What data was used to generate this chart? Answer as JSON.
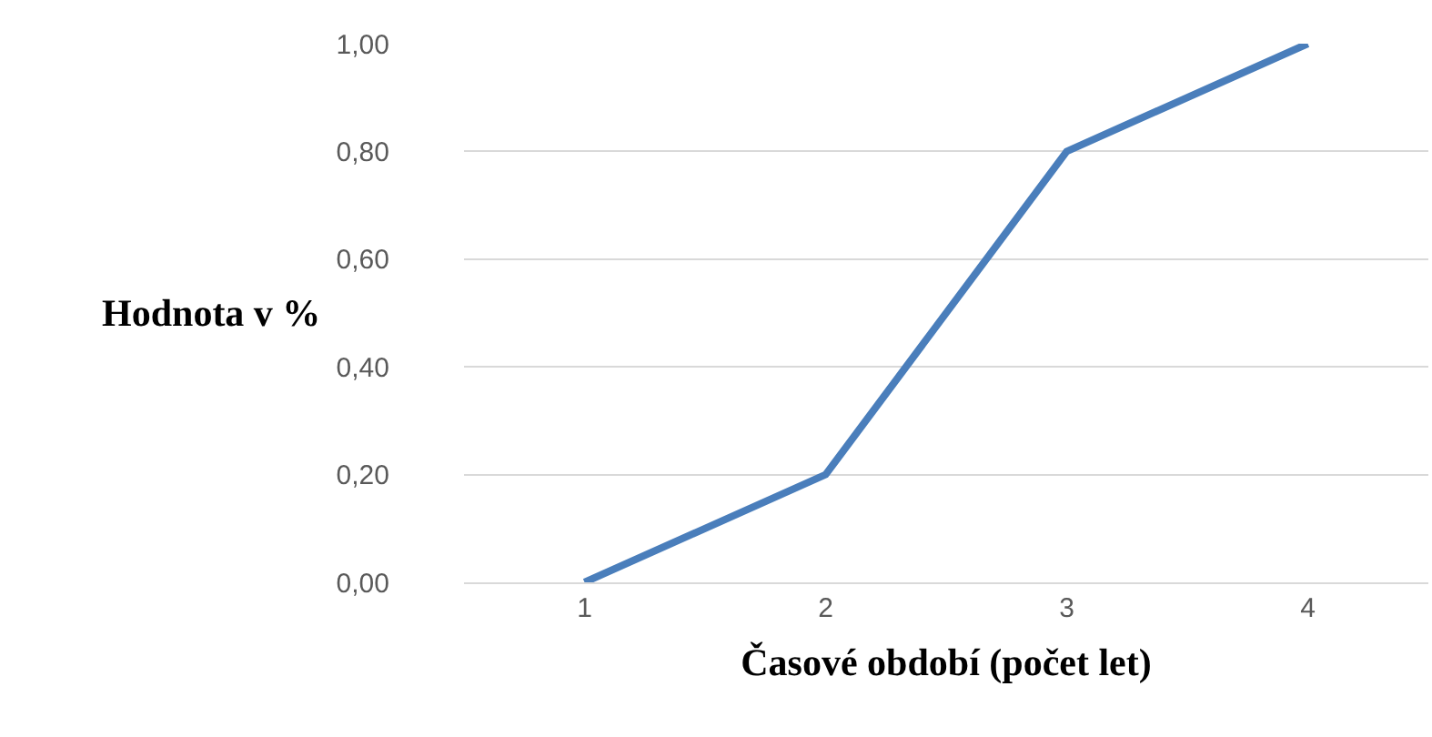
{
  "chart_data": {
    "type": "line",
    "xlabel": "Časové období (počet let)",
    "ylabel": "Hodnota v %",
    "categories": [
      "1",
      "2",
      "3",
      "4"
    ],
    "series": [
      {
        "color": "#4a7ebb",
        "values": [
          0,
          0.2,
          0.8,
          1.0
        ]
      }
    ],
    "ylim": [
      0,
      1
    ],
    "yticks": [
      {
        "value": 0,
        "label": "0,00"
      },
      {
        "value": 0.2,
        "label": "0,20"
      },
      {
        "value": 0.4,
        "label": "0,40"
      },
      {
        "value": 0.6,
        "label": "0,60"
      },
      {
        "value": 0.8,
        "label": "0,80"
      },
      {
        "value": 1,
        "label": "1,00"
      }
    ],
    "grid": "y",
    "marker": "none",
    "line_style": "solid"
  }
}
